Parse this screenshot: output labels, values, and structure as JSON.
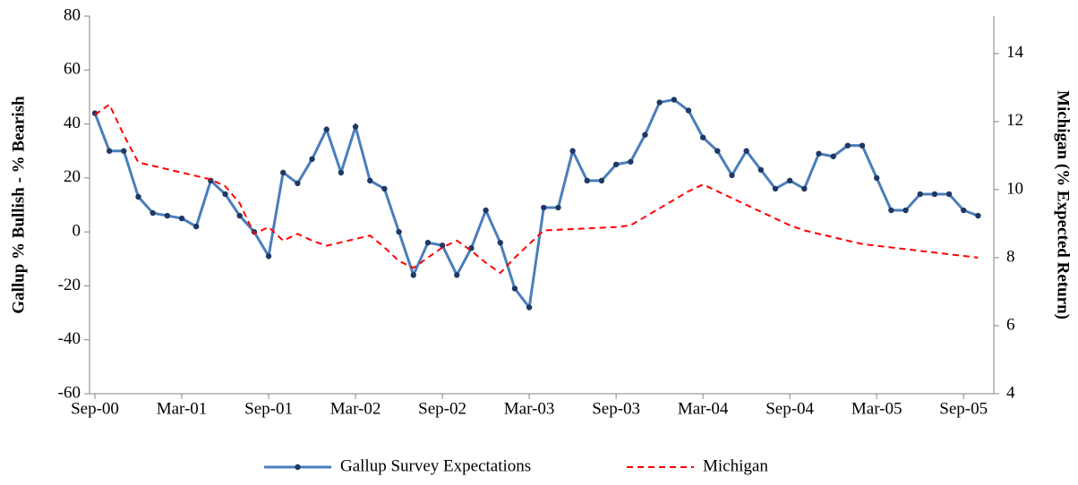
{
  "chart_data": {
    "type": "line",
    "y_label": "Gallup % Bullish - % Bearish",
    "y2_label": "Michigan (% Expected Return)",
    "categories": [
      "Sep-00",
      null,
      null,
      null,
      null,
      null,
      "Mar-01",
      null,
      null,
      null,
      null,
      null,
      "Sep-01",
      null,
      null,
      null,
      null,
      null,
      "Mar-02",
      null,
      null,
      null,
      null,
      null,
      "Sep-02",
      null,
      null,
      null,
      null,
      null,
      "Mar-03",
      null,
      null,
      null,
      null,
      null,
      "Sep-03",
      null,
      null,
      null,
      null,
      null,
      "Mar-04",
      null,
      null,
      null,
      null,
      null,
      "Sep-04",
      null,
      null,
      null,
      null,
      null,
      "Mar-05",
      null,
      null,
      null,
      null,
      null,
      "Sep-05",
      null
    ],
    "series": [
      {
        "name": "Gallup Survey Expectations",
        "color": "#4a7ebb",
        "dashed": false,
        "markers": true,
        "values": [
          44,
          30,
          30,
          13,
          7,
          6,
          5,
          2,
          19,
          14,
          6,
          0,
          -9,
          22,
          18,
          27,
          38,
          22,
          39,
          19,
          16,
          0,
          -16,
          -4,
          -5,
          -16,
          -6,
          8,
          -4,
          -21,
          -28,
          9,
          9,
          30,
          19,
          19,
          25,
          26,
          36,
          48,
          49,
          45,
          35,
          30,
          21,
          30,
          23,
          16,
          19,
          16,
          29,
          28,
          32,
          32,
          20,
          8,
          8,
          14,
          14,
          14,
          8,
          6
        ]
      },
      {
        "name": "Michigan",
        "color": "#ff0000",
        "dashed": true,
        "markers": false,
        "axis": "y2",
        "values": [
          12.2,
          12.5,
          11.6,
          10.8,
          10.7,
          10.6,
          10.5,
          10.4,
          10.3,
          10.1,
          9.6,
          8.7,
          8.9,
          8.5,
          8.7,
          8.5,
          8.35,
          8.45,
          8.55,
          8.65,
          8.3,
          7.9,
          7.7,
          8.0,
          8.3,
          8.5,
          8.2,
          7.85,
          7.55,
          8.0,
          8.4,
          8.8,
          8.82,
          8.84,
          8.86,
          8.88,
          8.9,
          8.95,
          9.2,
          9.45,
          9.7,
          9.95,
          10.15,
          9.95,
          9.75,
          9.55,
          9.35,
          9.15,
          8.95,
          8.8,
          8.7,
          8.6,
          8.5,
          8.4,
          8.35,
          8.3,
          8.25,
          8.2,
          8.15,
          8.1,
          8.05,
          8.0
        ]
      }
    ],
    "ylim": [
      -60,
      80
    ],
    "yticks": [
      -60,
      -40,
      -20,
      0,
      20,
      40,
      60,
      80
    ],
    "y2lim": [
      4,
      15.1
    ],
    "y2ticks": [
      4,
      6,
      8,
      10,
      12,
      14
    ],
    "grid": false,
    "legend": "bottom"
  }
}
